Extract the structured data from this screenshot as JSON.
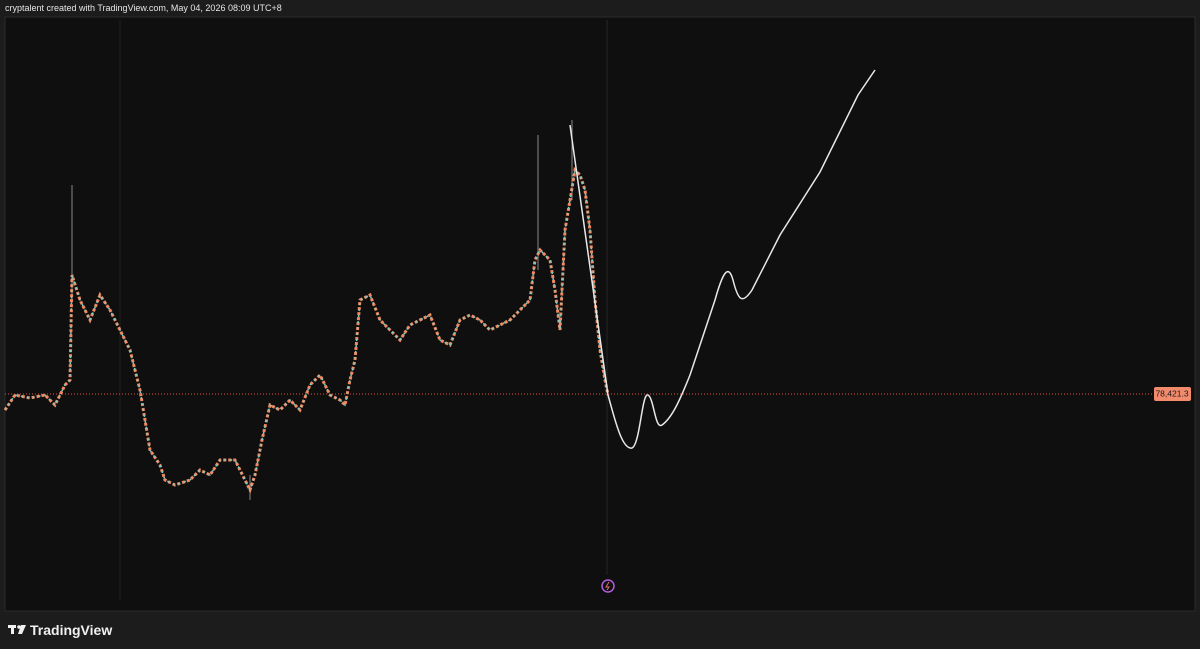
{
  "header": {
    "caption": "cryptalent created with TradingView.com, May 04, 2026 08:09 UTC+8"
  },
  "chart": {
    "price_label": "78,421.3"
  },
  "footer": {
    "brand": "TradingView"
  }
}
